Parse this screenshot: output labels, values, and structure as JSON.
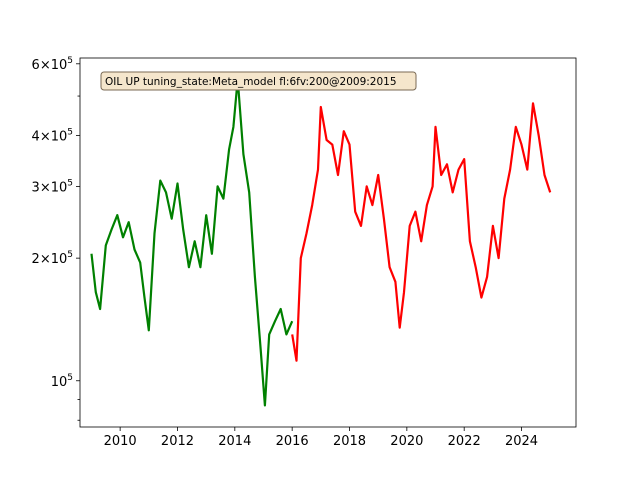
{
  "chart_data": {
    "type": "line",
    "annotation": "OIL UP tuning_state:Meta_model fl:6fv:200@2009:2015",
    "xlabel": "",
    "ylabel": "",
    "xlim": [
      2008.6,
      2025.9
    ],
    "ylim": [
      77000,
      620000
    ],
    "yscale": "log",
    "grid": false,
    "legend": "none",
    "x_ticks": [
      {
        "value": 2010,
        "label": "2010"
      },
      {
        "value": 2012,
        "label": "2012"
      },
      {
        "value": 2014,
        "label": "2014"
      },
      {
        "value": 2016,
        "label": "2016"
      },
      {
        "value": 2018,
        "label": "2018"
      },
      {
        "value": 2020,
        "label": "2020"
      },
      {
        "value": 2022,
        "label": "2022"
      },
      {
        "value": 2024,
        "label": "2024"
      }
    ],
    "y_ticks": [
      {
        "value": 100000,
        "mantissa": "",
        "exp": "5"
      },
      {
        "value": 200000,
        "mantissa": "2",
        "exp": "5"
      },
      {
        "value": 300000,
        "mantissa": "3",
        "exp": "5"
      },
      {
        "value": 400000,
        "mantissa": "4",
        "exp": "5"
      },
      {
        "value": 600000,
        "mantissa": "6",
        "exp": "5"
      }
    ],
    "y_minor_ticks": [
      80000,
      90000,
      500000
    ],
    "series": [
      {
        "color": "#008000",
        "x": [
          2009.0,
          2009.15,
          2009.3,
          2009.5,
          2009.7,
          2009.9,
          2010.1,
          2010.3,
          2010.5,
          2010.7,
          2010.85,
          2011.0,
          2011.2,
          2011.4,
          2011.6,
          2011.8,
          2012.0,
          2012.2,
          2012.4,
          2012.6,
          2012.8,
          2013.0,
          2013.2,
          2013.4,
          2013.6,
          2013.8,
          2013.95,
          2014.1,
          2014.3,
          2014.5,
          2014.7,
          2014.9,
          2015.05,
          2015.2,
          2015.4,
          2015.6,
          2015.8,
          2016.0
        ],
        "y": [
          205000,
          165000,
          150000,
          215000,
          235000,
          255000,
          225000,
          245000,
          210000,
          195000,
          160000,
          133000,
          230000,
          310000,
          290000,
          250000,
          305000,
          235000,
          190000,
          220000,
          190000,
          255000,
          205000,
          300000,
          280000,
          370000,
          420000,
          550000,
          360000,
          290000,
          180000,
          120000,
          87000,
          130000,
          140000,
          150000,
          130000,
          140000
        ]
      },
      {
        "color": "#ff0000",
        "x": [
          2016.0,
          2016.15,
          2016.3,
          2016.5,
          2016.7,
          2016.9,
          2017.0,
          2017.2,
          2017.4,
          2017.6,
          2017.8,
          2018.0,
          2018.2,
          2018.4,
          2018.6,
          2018.8,
          2019.0,
          2019.2,
          2019.4,
          2019.6,
          2019.75,
          2019.9,
          2020.1,
          2020.3,
          2020.5,
          2020.7,
          2020.9,
          2021.0,
          2021.2,
          2021.4,
          2021.6,
          2021.8,
          2022.0,
          2022.2,
          2022.4,
          2022.6,
          2022.8,
          2023.0,
          2023.2,
          2023.4,
          2023.6,
          2023.8,
          2024.0,
          2024.2,
          2024.4,
          2024.6,
          2024.8,
          2025.0
        ],
        "y": [
          130000,
          112000,
          200000,
          230000,
          270000,
          330000,
          470000,
          390000,
          380000,
          320000,
          410000,
          380000,
          260000,
          240000,
          300000,
          270000,
          320000,
          250000,
          190000,
          175000,
          135000,
          165000,
          240000,
          260000,
          220000,
          270000,
          300000,
          420000,
          320000,
          340000,
          290000,
          330000,
          350000,
          220000,
          190000,
          160000,
          180000,
          240000,
          200000,
          280000,
          330000,
          420000,
          380000,
          330000,
          480000,
          400000,
          320000,
          290000
        ]
      }
    ]
  }
}
